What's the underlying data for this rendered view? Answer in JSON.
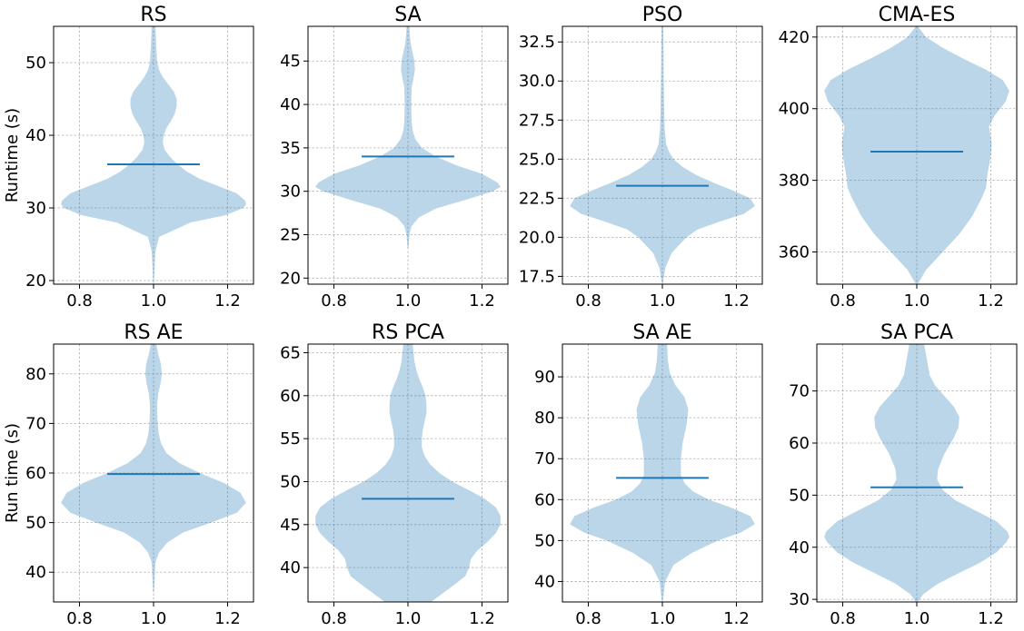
{
  "chart_data": [
    {
      "type": "violin",
      "title": "RS",
      "ylabel": "Runtime (s)",
      "xlim": [
        0.73,
        1.27
      ],
      "xticks": [
        0.8,
        1.0,
        1.2
      ],
      "xticklabels": [
        "0.8",
        "1.0",
        "1.2"
      ],
      "ylim": [
        19.5,
        55
      ],
      "yticks": [
        20,
        30,
        40,
        50
      ],
      "yticklabels": [
        "20",
        "30",
        "40",
        "50"
      ],
      "mean": 36,
      "extrema": [
        19.5,
        55
      ],
      "density": [
        [
          19.5,
          0.004
        ],
        [
          22,
          0.012
        ],
        [
          24,
          0.02
        ],
        [
          26,
          0.06
        ],
        [
          28,
          0.4
        ],
        [
          29,
          0.78
        ],
        [
          30,
          0.97
        ],
        [
          30.5,
          1.0
        ],
        [
          31,
          0.99
        ],
        [
          32,
          0.9
        ],
        [
          33,
          0.7
        ],
        [
          34,
          0.5
        ],
        [
          35,
          0.36
        ],
        [
          36,
          0.26
        ],
        [
          37,
          0.18
        ],
        [
          38,
          0.12
        ],
        [
          39,
          0.1
        ],
        [
          40,
          0.11
        ],
        [
          41,
          0.14
        ],
        [
          42,
          0.19
        ],
        [
          43,
          0.23
        ],
        [
          44,
          0.25
        ],
        [
          45,
          0.25
        ],
        [
          46,
          0.22
        ],
        [
          47,
          0.16
        ],
        [
          48,
          0.1
        ],
        [
          49,
          0.06
        ],
        [
          50,
          0.04
        ],
        [
          52,
          0.03
        ],
        [
          55,
          0.02
        ]
      ]
    },
    {
      "type": "violin",
      "title": "SA",
      "ylabel": "",
      "xlim": [
        0.73,
        1.27
      ],
      "xticks": [
        0.8,
        1.0,
        1.2
      ],
      "xticklabels": [
        "0.8",
        "1.0",
        "1.2"
      ],
      "ylim": [
        19.3,
        49
      ],
      "yticks": [
        20,
        25,
        30,
        35,
        40,
        45
      ],
      "yticklabels": [
        "20",
        "25",
        "30",
        "35",
        "40",
        "45"
      ],
      "mean": 34,
      "extrema": [
        23.5,
        49
      ],
      "density": [
        [
          23.5,
          0.005
        ],
        [
          25,
          0.015
        ],
        [
          26,
          0.04
        ],
        [
          27,
          0.12
        ],
        [
          28,
          0.3
        ],
        [
          29,
          0.62
        ],
        [
          30,
          0.92
        ],
        [
          30.5,
          1.0
        ],
        [
          31,
          0.97
        ],
        [
          32,
          0.8
        ],
        [
          33,
          0.52
        ],
        [
          34,
          0.3
        ],
        [
          35,
          0.15
        ],
        [
          36,
          0.08
        ],
        [
          37,
          0.05
        ],
        [
          38,
          0.04
        ],
        [
          40,
          0.035
        ],
        [
          42,
          0.04
        ],
        [
          43,
          0.06
        ],
        [
          44,
          0.075
        ],
        [
          45,
          0.07
        ],
        [
          46,
          0.05
        ],
        [
          47,
          0.03
        ],
        [
          48,
          0.02
        ],
        [
          49,
          0.015
        ]
      ]
    },
    {
      "type": "violin",
      "title": "PSO",
      "ylabel": "",
      "xlim": [
        0.73,
        1.27
      ],
      "xticks": [
        0.8,
        1.0,
        1.2
      ],
      "xticklabels": [
        "0.8",
        "1.0",
        "1.2"
      ],
      "ylim": [
        17,
        33.5
      ],
      "yticks": [
        17.5,
        20.0,
        22.5,
        25.0,
        27.5,
        30.0,
        32.5
      ],
      "yticklabels": [
        "17.5",
        "20.0",
        "22.5",
        "25.0",
        "27.5",
        "30.0",
        "32.5"
      ],
      "mean": 23.3,
      "extrema": [
        17,
        33.5
      ],
      "density": [
        [
          17,
          0.005
        ],
        [
          18,
          0.03
        ],
        [
          19,
          0.1
        ],
        [
          20,
          0.26
        ],
        [
          20.5,
          0.38
        ],
        [
          21,
          0.62
        ],
        [
          21.5,
          0.88
        ],
        [
          22,
          1.0
        ],
        [
          22.5,
          0.95
        ],
        [
          23,
          0.76
        ],
        [
          23.5,
          0.55
        ],
        [
          24,
          0.36
        ],
        [
          24.5,
          0.22
        ],
        [
          25,
          0.12
        ],
        [
          25.5,
          0.07
        ],
        [
          26,
          0.04
        ],
        [
          27,
          0.025
        ],
        [
          28,
          0.02
        ],
        [
          30,
          0.015
        ],
        [
          33.5,
          0.01
        ]
      ]
    },
    {
      "type": "violin",
      "title": "CMA-ES",
      "ylabel": "",
      "xlim": [
        0.73,
        1.27
      ],
      "xticks": [
        0.8,
        1.0,
        1.2
      ],
      "xticklabels": [
        "0.8",
        "1.0",
        "1.2"
      ],
      "ylim": [
        351,
        423
      ],
      "yticks": [
        360,
        380,
        400,
        420
      ],
      "yticklabels": [
        "360",
        "380",
        "400",
        "420"
      ],
      "mean": 388,
      "extrema": [
        351,
        423
      ],
      "density": [
        [
          351,
          0.01
        ],
        [
          355,
          0.1
        ],
        [
          360,
          0.28
        ],
        [
          365,
          0.46
        ],
        [
          370,
          0.6
        ],
        [
          375,
          0.7
        ],
        [
          378,
          0.75
        ],
        [
          381,
          0.76
        ],
        [
          384,
          0.78
        ],
        [
          387,
          0.8
        ],
        [
          390,
          0.81
        ],
        [
          392,
          0.8
        ],
        [
          395,
          0.78
        ],
        [
          398,
          0.84
        ],
        [
          402,
          0.96
        ],
        [
          405,
          1.0
        ],
        [
          408,
          0.93
        ],
        [
          411,
          0.74
        ],
        [
          414,
          0.5
        ],
        [
          417,
          0.28
        ],
        [
          420,
          0.1
        ],
        [
          423,
          0.01
        ]
      ]
    },
    {
      "type": "violin",
      "title": "RS AE",
      "ylabel": "Run time (s)",
      "xlim": [
        0.73,
        1.27
      ],
      "xticks": [
        0.8,
        1.0,
        1.2
      ],
      "xticklabels": [
        "0.8",
        "1.0",
        "1.2"
      ],
      "ylim": [
        34,
        86
      ],
      "yticks": [
        40,
        50,
        60,
        70,
        80
      ],
      "yticklabels": [
        "40",
        "50",
        "60",
        "70",
        "80"
      ],
      "mean": 59.8,
      "extrema": [
        36,
        86
      ],
      "density": [
        [
          36,
          0.005
        ],
        [
          42,
          0.02
        ],
        [
          44,
          0.06
        ],
        [
          46,
          0.15
        ],
        [
          48,
          0.32
        ],
        [
          50,
          0.62
        ],
        [
          52,
          0.9
        ],
        [
          54,
          1.0
        ],
        [
          56,
          0.94
        ],
        [
          58,
          0.76
        ],
        [
          60,
          0.5
        ],
        [
          62,
          0.28
        ],
        [
          64,
          0.14
        ],
        [
          66,
          0.08
        ],
        [
          68,
          0.055
        ],
        [
          70,
          0.045
        ],
        [
          72,
          0.04
        ],
        [
          74,
          0.04
        ],
        [
          76,
          0.05
        ],
        [
          78,
          0.075
        ],
        [
          80,
          0.09
        ],
        [
          82,
          0.08
        ],
        [
          84,
          0.05
        ],
        [
          86,
          0.03
        ]
      ]
    },
    {
      "type": "violin",
      "title": "RS PCA",
      "ylabel": "",
      "xlim": [
        0.73,
        1.27
      ],
      "xticks": [
        0.8,
        1.0,
        1.2
      ],
      "xticklabels": [
        "0.8",
        "1.0",
        "1.2"
      ],
      "ylim": [
        36,
        66
      ],
      "yticks": [
        40,
        45,
        50,
        55,
        60,
        65
      ],
      "yticklabels": [
        "40",
        "45",
        "50",
        "55",
        "60",
        "65"
      ],
      "mean": 48,
      "extrema": [
        36,
        66
      ],
      "density": [
        [
          36,
          0.25
        ],
        [
          38,
          0.5
        ],
        [
          39,
          0.62
        ],
        [
          40,
          0.66
        ],
        [
          41,
          0.68
        ],
        [
          42,
          0.75
        ],
        [
          43,
          0.86
        ],
        [
          44,
          0.95
        ],
        [
          45,
          1.0
        ],
        [
          46,
          1.0
        ],
        [
          47,
          0.95
        ],
        [
          48,
          0.83
        ],
        [
          49,
          0.66
        ],
        [
          50,
          0.48
        ],
        [
          51,
          0.34
        ],
        [
          52,
          0.24
        ],
        [
          53,
          0.18
        ],
        [
          54,
          0.15
        ],
        [
          55,
          0.15
        ],
        [
          56,
          0.16
        ],
        [
          57,
          0.18
        ],
        [
          58,
          0.2
        ],
        [
          59,
          0.2
        ],
        [
          60,
          0.19
        ],
        [
          61,
          0.16
        ],
        [
          62,
          0.12
        ],
        [
          63,
          0.09
        ],
        [
          64,
          0.07
        ],
        [
          66,
          0.05
        ]
      ]
    },
    {
      "type": "violin",
      "title": "SA AE",
      "ylabel": "",
      "xlim": [
        0.73,
        1.27
      ],
      "xticks": [
        0.8,
        1.0,
        1.2
      ],
      "xticklabels": [
        "0.8",
        "1.0",
        "1.2"
      ],
      "ylim": [
        35,
        98
      ],
      "yticks": [
        40,
        50,
        60,
        70,
        80,
        90
      ],
      "yticklabels": [
        "40",
        "50",
        "60",
        "70",
        "80",
        "90"
      ],
      "mean": 65.3,
      "extrema": [
        35,
        98
      ],
      "density": [
        [
          35,
          0.005
        ],
        [
          40,
          0.03
        ],
        [
          44,
          0.12
        ],
        [
          47,
          0.32
        ],
        [
          50,
          0.6
        ],
        [
          52,
          0.85
        ],
        [
          54,
          1.0
        ],
        [
          56,
          0.95
        ],
        [
          58,
          0.75
        ],
        [
          60,
          0.5
        ],
        [
          62,
          0.33
        ],
        [
          64,
          0.24
        ],
        [
          66,
          0.2
        ],
        [
          70,
          0.2
        ],
        [
          74,
          0.22
        ],
        [
          78,
          0.26
        ],
        [
          82,
          0.28
        ],
        [
          85,
          0.24
        ],
        [
          88,
          0.14
        ],
        [
          91,
          0.08
        ],
        [
          94,
          0.06
        ],
        [
          98,
          0.05
        ]
      ]
    },
    {
      "type": "violin",
      "title": "SA PCA",
      "ylabel": "",
      "xlim": [
        0.73,
        1.27
      ],
      "xticks": [
        0.8,
        1.0,
        1.2
      ],
      "xticklabels": [
        "0.8",
        "1.0",
        "1.2"
      ],
      "ylim": [
        29.5,
        79
      ],
      "yticks": [
        30,
        40,
        50,
        60,
        70
      ],
      "yticklabels": [
        "30",
        "40",
        "50",
        "60",
        "70"
      ],
      "mean": 51.5,
      "extrema": [
        29.5,
        79
      ],
      "density": [
        [
          29.5,
          0.01
        ],
        [
          31,
          0.07
        ],
        [
          33,
          0.23
        ],
        [
          35,
          0.45
        ],
        [
          37,
          0.68
        ],
        [
          39,
          0.86
        ],
        [
          41,
          0.97
        ],
        [
          42,
          1.0
        ],
        [
          43,
          0.98
        ],
        [
          45,
          0.86
        ],
        [
          47,
          0.64
        ],
        [
          49,
          0.42
        ],
        [
          51,
          0.28
        ],
        [
          53,
          0.22
        ],
        [
          55,
          0.23
        ],
        [
          58,
          0.3
        ],
        [
          61,
          0.4
        ],
        [
          63,
          0.45
        ],
        [
          65,
          0.46
        ],
        [
          67,
          0.4
        ],
        [
          69,
          0.3
        ],
        [
          71,
          0.2
        ],
        [
          73,
          0.14
        ],
        [
          75,
          0.12
        ],
        [
          77,
          0.1
        ],
        [
          79,
          0.08
        ]
      ]
    }
  ],
  "colors": {
    "violin_fill": "#1f77b4",
    "mean_line": "#1f77b4",
    "grid": "#b0b0b0"
  }
}
